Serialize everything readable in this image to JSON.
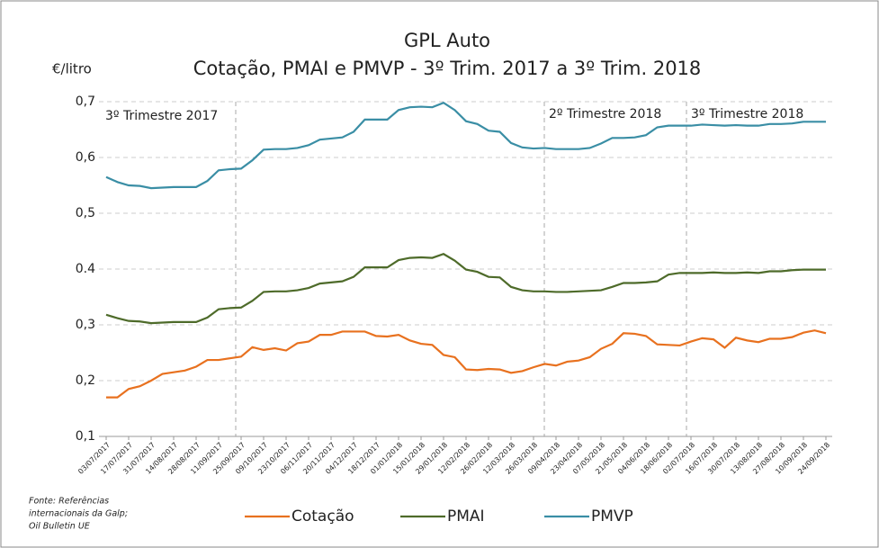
{
  "chart_data": {
    "type": "line",
    "title": [
      "GPL Auto",
      "Cotação, PMAI e PMVP - 3º Trim. 2017 a 3º Trim. 2018"
    ],
    "y_label": "€/litro",
    "source": [
      "Fonte: Referências",
      "internacionais da Galp;",
      "Oil Bulletin UE"
    ],
    "annotations": [
      "3º Trimestre 2017",
      "2º Trimestre 2018",
      "3º Trimestre 2018"
    ],
    "categories": [
      "03/07/2017",
      null,
      "17/07/2017",
      null,
      "31/07/2017",
      null,
      "14/08/2017",
      null,
      "28/08/2017",
      null,
      "11/09/2017",
      null,
      "25/09/2017",
      null,
      "09/10/2017",
      null,
      "23/10/2017",
      null,
      "06/11/2017",
      null,
      "20/11/2017",
      null,
      "04/12/2017",
      null,
      "18/12/2017",
      null,
      "01/01/2018",
      null,
      "15/01/2018",
      null,
      "29/01/2018",
      null,
      "12/02/2018",
      null,
      "26/02/2018",
      null,
      "12/03/2018",
      null,
      "26/03/2018",
      null,
      "09/04/2018",
      null,
      "23/04/2018",
      null,
      "07/05/2018",
      null,
      "21/05/2018",
      null,
      "04/06/2018",
      null,
      "18/06/2018",
      null,
      "02/07/2018",
      null,
      "16/07/2018",
      null,
      "30/07/2018",
      null,
      "13/08/2018",
      null,
      "27/08/2018",
      null,
      "10/09/2018",
      null,
      "24/09/2018"
    ],
    "series": [
      {
        "name": "Cotação",
        "color": "#e8711f",
        "values": [
          0.17,
          0.17,
          0.185,
          0.19,
          0.2,
          0.212,
          0.215,
          0.218,
          0.225,
          0.237,
          0.237,
          0.24,
          0.243,
          0.26,
          0.255,
          0.258,
          0.254,
          0.267,
          0.27,
          0.282,
          0.282,
          0.288,
          0.288,
          0.288,
          0.28,
          0.279,
          0.282,
          0.272,
          0.266,
          0.264,
          0.246,
          0.242,
          0.22,
          0.219,
          0.221,
          0.22,
          0.214,
          0.217,
          0.224,
          0.23,
          0.227,
          0.234,
          0.236,
          0.242,
          0.257,
          0.266,
          0.285,
          0.284,
          0.28,
          0.265,
          0.264,
          0.263,
          0.27,
          0.276,
          0.274,
          0.259,
          0.277,
          0.272,
          0.269,
          0.275,
          0.275,
          0.278,
          0.286,
          0.29,
          0.285
        ]
      },
      {
        "name": "PMAI",
        "color": "#4e6b2a",
        "values": [
          0.318,
          0.312,
          0.307,
          0.306,
          0.303,
          0.304,
          0.305,
          0.305,
          0.305,
          0.313,
          0.328,
          0.33,
          0.331,
          0.343,
          0.359,
          0.36,
          0.36,
          0.362,
          0.366,
          0.374,
          0.376,
          0.378,
          0.386,
          0.403,
          0.403,
          0.403,
          0.416,
          0.42,
          0.421,
          0.42,
          0.427,
          0.415,
          0.399,
          0.395,
          0.386,
          0.385,
          0.368,
          0.362,
          0.36,
          0.36,
          0.359,
          0.359,
          0.36,
          0.361,
          0.362,
          0.368,
          0.375,
          0.375,
          0.376,
          0.378,
          0.39,
          0.393,
          0.393,
          0.393,
          0.394,
          0.393,
          0.393,
          0.394,
          0.393,
          0.396,
          0.396,
          0.398,
          0.399,
          0.399,
          0.399
        ]
      },
      {
        "name": "PMVP",
        "color": "#3a8ea5",
        "values": [
          0.565,
          0.556,
          0.55,
          0.549,
          0.545,
          0.546,
          0.547,
          0.547,
          0.547,
          0.558,
          0.577,
          0.579,
          0.58,
          0.595,
          0.614,
          0.615,
          0.615,
          0.617,
          0.622,
          0.632,
          0.634,
          0.636,
          0.646,
          0.668,
          0.668,
          0.668,
          0.685,
          0.69,
          0.691,
          0.69,
          0.698,
          0.685,
          0.665,
          0.66,
          0.648,
          0.646,
          0.626,
          0.618,
          0.616,
          0.617,
          0.615,
          0.615,
          0.615,
          0.617,
          0.625,
          0.635,
          0.635,
          0.636,
          0.64,
          0.654,
          0.657,
          0.657,
          0.657,
          0.659,
          0.658,
          0.657,
          0.658,
          0.657,
          0.657,
          0.66,
          0.66,
          0.661,
          0.664,
          0.664,
          0.664
        ]
      }
    ],
    "ylim": [
      0.1,
      0.7
    ],
    "yticks": [
      {
        "value": 0.1,
        "label": "0,1"
      },
      {
        "value": 0.2,
        "label": "0,2"
      },
      {
        "value": 0.3,
        "label": "0,3"
      },
      0.4,
      {
        "value": 0.5,
        "label": "0,5"
      },
      {
        "value": 0.6,
        "label": "0,6"
      },
      {
        "value": 0.7,
        "label": "0,7"
      }
    ],
    "grid": true
  }
}
